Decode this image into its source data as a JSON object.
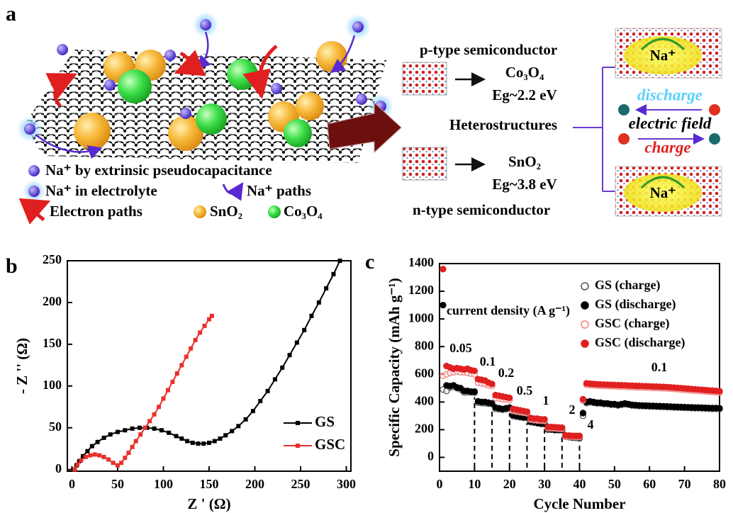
{
  "panel_labels": [
    "a",
    "b",
    "c"
  ],
  "schematic": {
    "legend": [
      "Na⁺ by extrinsic pseudocapacitance",
      "Na⁺ in electrolyte",
      "Na⁺ paths",
      "Electron paths",
      "SnO₂",
      "Co₃O₄"
    ],
    "p_type": "p-type semiconductor",
    "p_material": "Co₃O₄",
    "p_gap": "Eg~2.2 eV",
    "hetero": "Heterostructures",
    "n_material": "SnO₂",
    "n_gap": "Eg~3.8 eV",
    "n_type": "n-type semiconductor",
    "ion": "Na⁺",
    "discharge": "discharge",
    "field": "electric field",
    "charge": "charge"
  },
  "chart_data": [
    {
      "type": "line",
      "xlabel": "Z ' (Ω)",
      "ylabel": "- Z '' (Ω)",
      "xlim": [
        -5,
        305
      ],
      "ylim": [
        -2,
        250
      ],
      "xticks": [
        0,
        50,
        100,
        150,
        200,
        250,
        300
      ],
      "yticks": [
        0,
        50,
        100,
        150,
        200,
        250
      ],
      "legend": "lower right",
      "series": [
        {
          "name": "GS",
          "color": "#000000",
          "x": [
            3,
            5,
            8,
            12,
            17,
            22,
            28,
            35,
            42,
            50,
            58,
            66,
            74,
            82,
            90,
            98,
            106,
            114,
            120,
            126,
            132,
            138,
            144,
            150,
            156,
            162,
            168,
            175,
            182,
            190,
            198,
            206,
            214,
            222,
            230,
            238,
            246,
            254,
            262,
            270,
            278,
            286,
            293
          ],
          "values": [
            0,
            5,
            10,
            16,
            22,
            28,
            33,
            38,
            42,
            45,
            47,
            49,
            50,
            50,
            49,
            47,
            44,
            40,
            37,
            34,
            32,
            31,
            31,
            32,
            34,
            37,
            41,
            46,
            52,
            60,
            70,
            82,
            94,
            108,
            122,
            137,
            152,
            167,
            184,
            200,
            217,
            234,
            250
          ]
        },
        {
          "name": "GSC",
          "color": "#e8302a",
          "x": [
            3,
            6,
            10,
            15,
            20,
            25,
            30,
            35,
            40,
            45,
            50,
            54,
            58,
            62,
            66,
            70,
            75,
            80,
            85,
            90,
            95,
            100,
            105,
            110,
            115,
            120,
            125,
            130,
            135,
            140,
            145,
            150,
            153
          ],
          "values": [
            0,
            6,
            11,
            15,
            17,
            18,
            17,
            15,
            12,
            8,
            5,
            8,
            14,
            20,
            27,
            34,
            42,
            50,
            58,
            66,
            75,
            85,
            95,
            105,
            115,
            125,
            135,
            145,
            155,
            164,
            172,
            180,
            184
          ]
        }
      ]
    },
    {
      "type": "scatter",
      "xlabel": "Cycle Number",
      "ylabel": "Specific Capacity (mAh g⁻¹)",
      "xlim": [
        0,
        80
      ],
      "ylim": [
        -100,
        1400
      ],
      "xticks": [
        0,
        10,
        20,
        30,
        40,
        50,
        60,
        70,
        80
      ],
      "yticks": [
        0,
        200,
        400,
        600,
        800,
        1000,
        1200,
        1400
      ],
      "legend": "upper right",
      "annotations": [
        "current density (A g⁻¹)",
        "0.05",
        "0.1",
        "0.2",
        "0.5",
        "1",
        "2",
        "4",
        "0.1"
      ],
      "dividers": [
        10,
        15,
        20,
        25,
        30,
        35,
        40
      ],
      "x": [
        1,
        2,
        3,
        4,
        5,
        6,
        7,
        8,
        9,
        10,
        11,
        12,
        13,
        14,
        15,
        16,
        17,
        18,
        19,
        20,
        21,
        22,
        23,
        24,
        25,
        26,
        27,
        28,
        29,
        30,
        31,
        32,
        33,
        34,
        35,
        36,
        37,
        38,
        39,
        40,
        41,
        42,
        43,
        44,
        45,
        46,
        47,
        48,
        49,
        50,
        51,
        52,
        53,
        54,
        55,
        56,
        57,
        58,
        59,
        60,
        61,
        62,
        63,
        64,
        65,
        66,
        67,
        68,
        69,
        70,
        71,
        72,
        73,
        74,
        75,
        76,
        77,
        78,
        79,
        80
      ],
      "series": [
        {
          "name": "GS (charge)",
          "color": "#555555",
          "filled": false,
          "values": [
            490,
            480,
            505,
            510,
            500,
            490,
            470,
            470,
            470,
            468,
            395,
            392,
            390,
            388,
            385,
            350,
            348,
            345,
            348,
            352,
            298,
            294,
            290,
            286,
            285,
            254,
            250,
            246,
            242,
            240,
            200,
            200,
            196,
            196,
            195,
            150,
            146,
            142,
            140,
            138,
            300,
            392,
            398,
            394,
            390,
            390,
            385,
            385,
            380,
            380,
            375,
            380,
            384,
            380,
            375,
            373,
            371,
            370,
            369,
            368,
            367,
            366,
            365,
            364,
            363,
            362,
            361,
            360,
            359,
            358,
            357,
            356,
            355,
            355,
            354,
            353,
            352,
            351,
            351,
            350
          ]
        },
        {
          "name": "GS (discharge)",
          "color": "#000000",
          "filled": true,
          "values": [
            1100,
            520,
            515,
            520,
            505,
            500,
            480,
            480,
            475,
            475,
            405,
            400,
            400,
            395,
            390,
            360,
            355,
            350,
            355,
            360,
            305,
            300,
            295,
            290,
            290,
            260,
            255,
            250,
            245,
            245,
            205,
            205,
            200,
            200,
            200,
            155,
            150,
            145,
            145,
            140,
            320,
            400,
            405,
            400,
            395,
            395,
            390,
            390,
            385,
            385,
            380,
            385,
            390,
            385,
            380,
            378,
            376,
            375,
            374,
            373,
            372,
            371,
            370,
            369,
            368,
            367,
            366,
            365,
            364,
            363,
            362,
            361,
            360,
            360,
            359,
            358,
            357,
            356,
            356,
            355
          ]
        },
        {
          "name": "GSC (charge)",
          "color": "#f08080",
          "filled": false,
          "values": [
            590,
            600,
            610,
            615,
            620,
            615,
            615,
            610,
            605,
            600,
            540,
            535,
            530,
            520,
            515,
            430,
            425,
            420,
            418,
            415,
            335,
            330,
            326,
            322,
            318,
            272,
            268,
            266,
            264,
            262,
            210,
            210,
            208,
            206,
            205,
            152,
            150,
            148,
            146,
            145,
            410,
            525,
            522,
            520,
            518,
            517,
            516,
            515,
            514,
            513,
            512,
            511,
            510,
            509,
            508,
            507,
            506,
            505,
            504,
            503,
            502,
            501,
            500,
            499,
            498,
            496,
            494,
            492,
            490,
            488,
            486,
            484,
            482,
            480,
            478,
            476,
            474,
            472,
            470,
            468
          ]
        },
        {
          "name": "GSC (discharge)",
          "color": "#e02020",
          "filled": true,
          "values": [
            1360,
            660,
            650,
            640,
            645,
            640,
            635,
            640,
            630,
            625,
            565,
            560,
            555,
            540,
            530,
            450,
            445,
            440,
            435,
            430,
            350,
            345,
            340,
            335,
            330,
            285,
            280,
            280,
            275,
            275,
            220,
            220,
            218,
            216,
            215,
            160,
            158,
            156,
            155,
            155,
            420,
            535,
            532,
            530,
            528,
            527,
            526,
            525,
            524,
            523,
            522,
            521,
            520,
            519,
            518,
            517,
            516,
            515,
            514,
            513,
            512,
            511,
            510,
            509,
            508,
            506,
            504,
            502,
            500,
            498,
            496,
            494,
            492,
            490,
            488,
            486,
            484,
            482,
            480,
            478
          ]
        }
      ]
    }
  ]
}
